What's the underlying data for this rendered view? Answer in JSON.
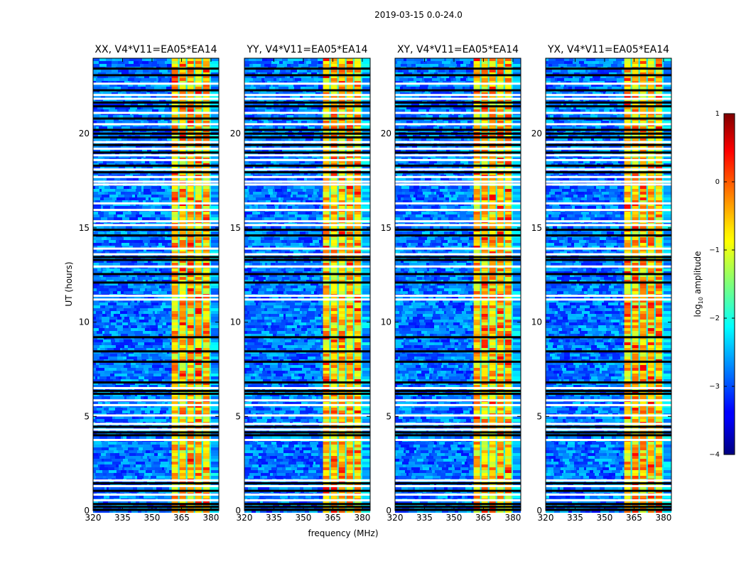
{
  "suptitle": "2019-03-15 0.0-24.0",
  "chart_data": {
    "type": "heatmap",
    "ylabel": "UT (hours)",
    "xlabel": "frequency (MHz)",
    "xlim": [
      320,
      384
    ],
    "ylim": [
      0,
      24
    ],
    "xticks": [
      320,
      335,
      350,
      365,
      380
    ],
    "xtick_labels": [
      "320",
      "335",
      "350",
      "365",
      "380"
    ],
    "yticks": [
      0,
      5,
      10,
      15,
      20
    ],
    "ytick_labels": [
      "0",
      "5",
      "10",
      "15",
      "20"
    ],
    "panels": [
      {
        "title": "XX, V4*V11=EA05*EA14"
      },
      {
        "title": "YY, V4*V11=EA05*EA14"
      },
      {
        "title": "XY, V4*V11=EA05*EA14"
      },
      {
        "title": "YX, V4*V11=EA05*EA14"
      }
    ],
    "colorbar": {
      "label": "log",
      "label_subscript": "10",
      "label_suffix": " amplitude",
      "range": [
        -4,
        1
      ],
      "ticks": [
        1,
        0,
        -1,
        -2,
        -3,
        -4
      ],
      "tick_labels": [
        "1",
        "0",
        "−1",
        "−2",
        "−3",
        "−4"
      ],
      "colormap": "jet"
    },
    "band_start_mhz": 360,
    "band_end_mhz": 380,
    "band_channel_edges_mhz": [
      364,
      368,
      372,
      376
    ],
    "flagged_white_hours": [
      0.55,
      0.85,
      1.3,
      1.6,
      3.75,
      4.3,
      4.6,
      5.05,
      5.6,
      5.85,
      6.5,
      11.2,
      11.4,
      12.95,
      13.6,
      13.9,
      15.15,
      15.35,
      15.95,
      16.3,
      17.3,
      17.45,
      17.7,
      18.1,
      18.6,
      18.85,
      19.2,
      19.55,
      20.5,
      21.1,
      21.85,
      22.05,
      22.65
    ],
    "flagged_black_hours": [
      0.05,
      0.2,
      0.35,
      1.05,
      1.45,
      4.0,
      4.15,
      4.45,
      6.2,
      6.35,
      6.8,
      7.9,
      8.45,
      9.2,
      12.1,
      12.55,
      13.3,
      13.45,
      14.6,
      14.9,
      17.95,
      18.3,
      19.0,
      19.4,
      19.8,
      20.0,
      20.2,
      20.8,
      21.45,
      21.65,
      22.3,
      23.1,
      23.45
    ]
  }
}
